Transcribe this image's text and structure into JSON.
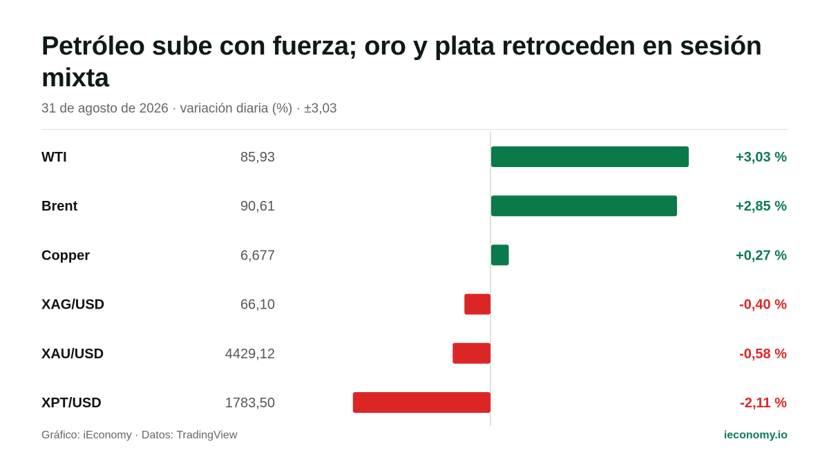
{
  "header": {
    "title": "Petróleo sube con fuerza; oro y plata retroceden en sesión mixta",
    "subtitle": "31 de agosto de 2026 · variación diaria (%) · ±3,03"
  },
  "footer": {
    "source": "Gráfico: iEconomy · Datos: TradingView",
    "brand": "ieconomy.io"
  },
  "colors": {
    "positive": "#0b7a4b",
    "negative": "#dc2626",
    "positive_text": "#0b7a52",
    "negative_text": "#dc2626"
  },
  "chart_data": {
    "type": "bar",
    "orientation": "horizontal",
    "scale_max": 3.03,
    "categories": [
      "WTI",
      "Brent",
      "Copper",
      "XAG/USD",
      "XAU/USD",
      "XPT/USD"
    ],
    "prices": [
      "85,93",
      "90,61",
      "6,677",
      "66,10",
      "4429,12",
      "1783,50"
    ],
    "values": [
      3.03,
      2.85,
      0.27,
      -0.4,
      -0.58,
      -2.11
    ],
    "value_labels": [
      "+3,03 %",
      "+2,85 %",
      "+0,27 %",
      "-0,40 %",
      "-0,58 %",
      "-2,11 %"
    ],
    "grid": false,
    "legend": "none"
  }
}
